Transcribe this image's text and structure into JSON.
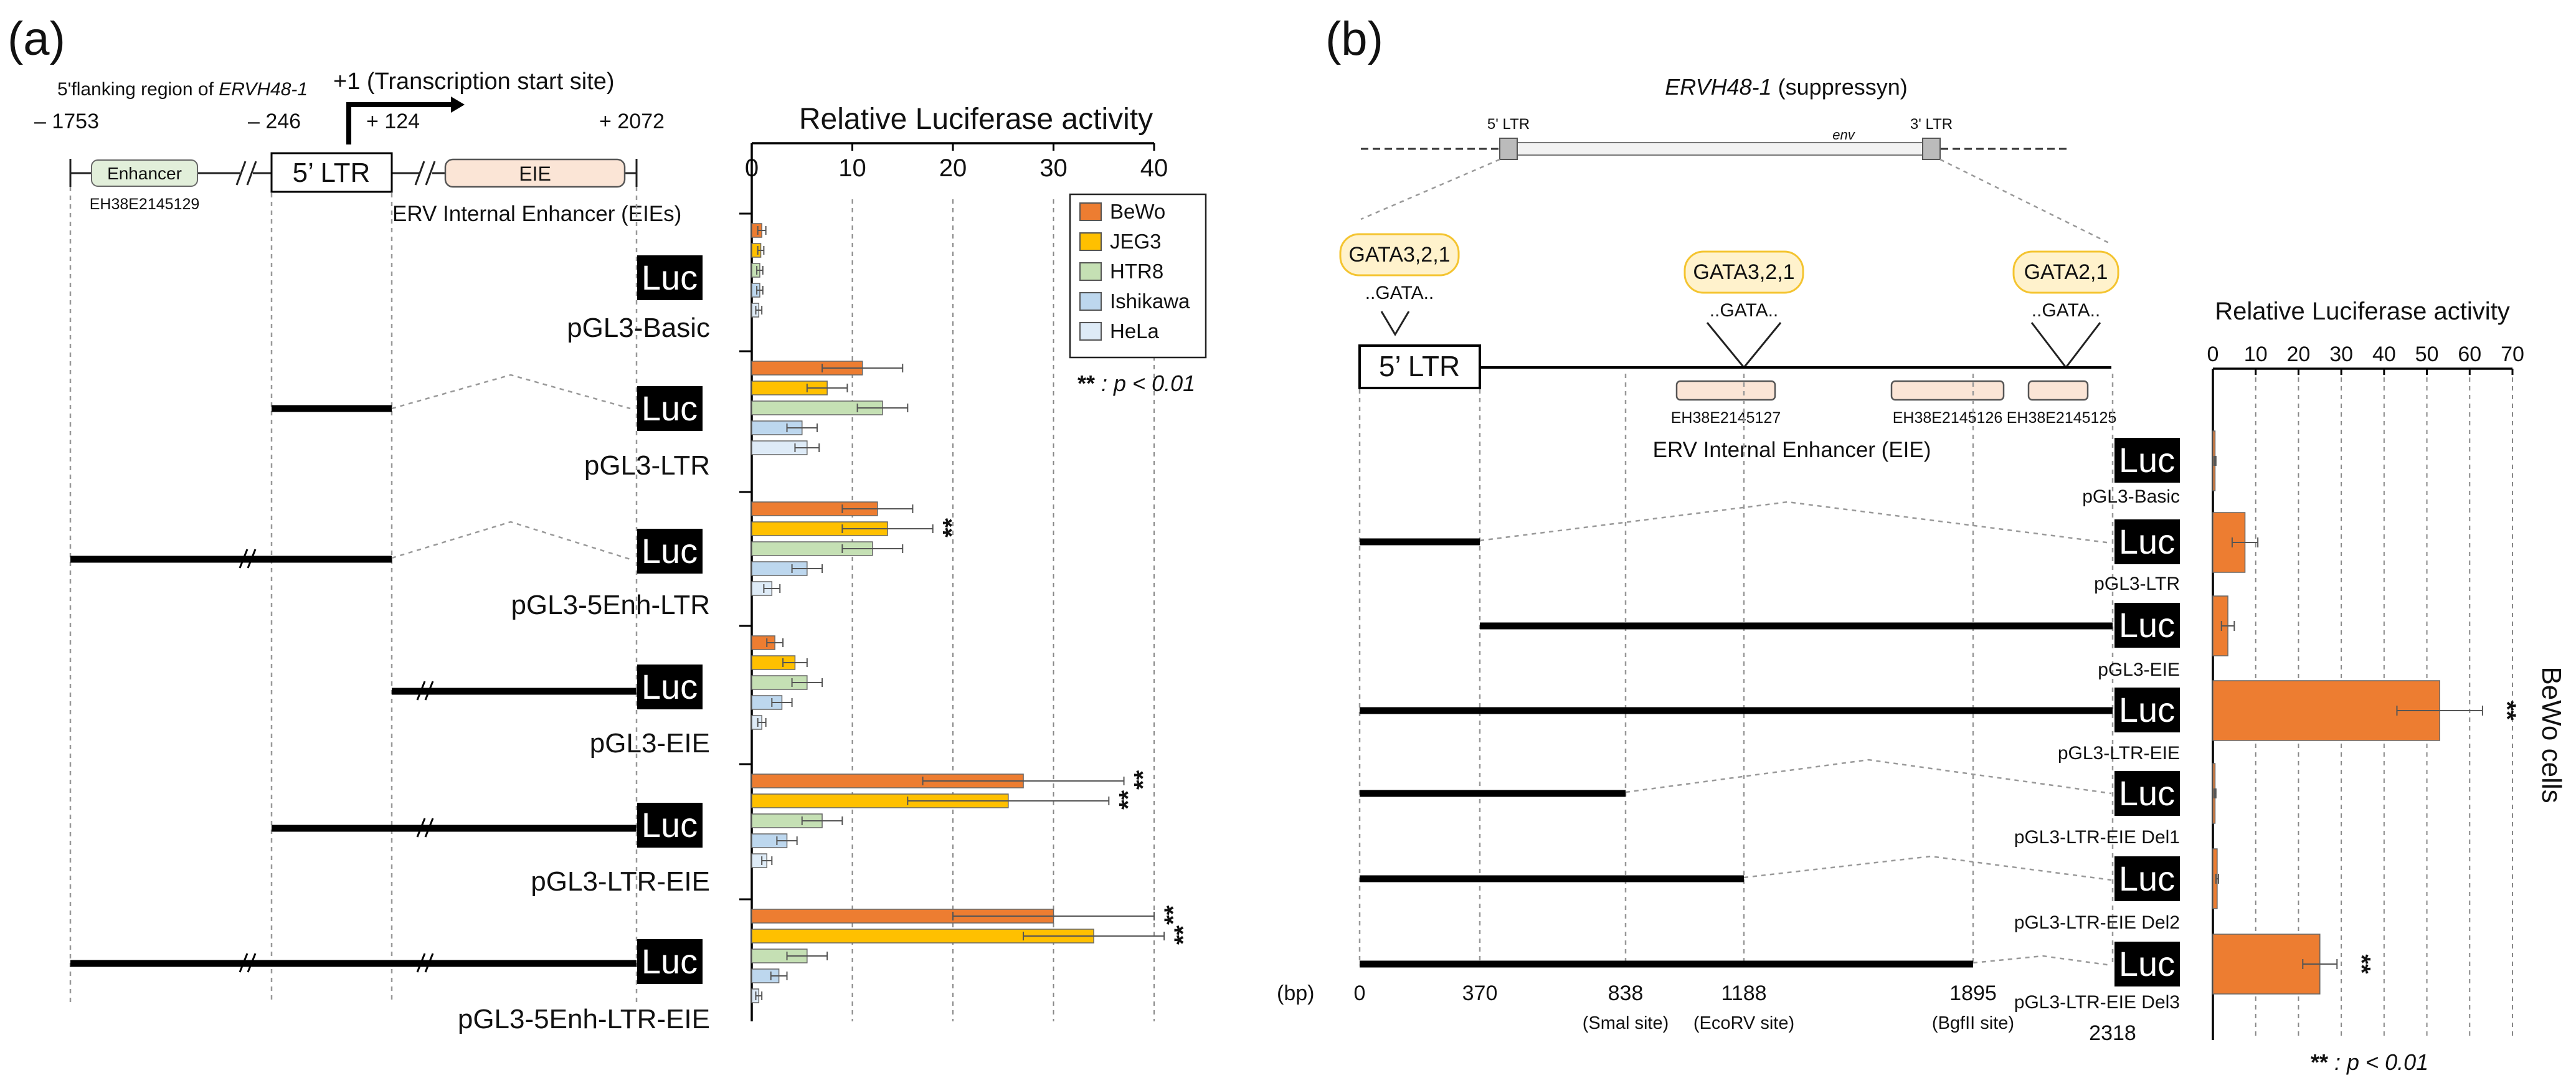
{
  "colors": {
    "BeWo": "#ED7D31",
    "JEG3": "#FFC000",
    "HTR8": "#C5E0B4",
    "Ishikawa": "#BDD7EE",
    "HeLa": "#DEEBF7"
  },
  "panel_a": {
    "label": "(a)",
    "flank_label_prefix": "5'flanking region of ",
    "flank_gene": "ERVH48-1",
    "tss_label": "+1 (Transcription start site)",
    "coords": [
      "– 1753",
      "– 246",
      "+ 124",
      "+ 2072"
    ],
    "enhancer_label": "Enhancer",
    "enhancer_id": "EH38E2145129",
    "ltr_label": "5’ LTR",
    "eie_label": "EIE",
    "eie_full": "ERV Internal Enhancer (EIEs)",
    "luc": "Luc",
    "sig_note": "** : p < 0.01",
    "sig_mark": "**"
  },
  "panel_b": {
    "label": "(b)",
    "gene_name": "ERVH48-1",
    "gene_suffix": " (suppressyn)",
    "ltr5_small": "5' LTR",
    "env_label": "env",
    "ltr3_small": "3' LTR",
    "gata_sites": [
      "GATA3,2,1",
      "GATA3,2,1",
      "GATA2,1"
    ],
    "gata_motif": "..GATA..",
    "ltr_label": "5’ LTR",
    "eie_ids": [
      "EH38E2145127",
      "EH38E2145126",
      "EH38E2145125"
    ],
    "eie_full": "ERV Internal Enhancer (EIE)",
    "bp_label": "(bp)",
    "positions": [
      "0",
      "370",
      "838",
      "1188",
      "1895",
      "2318"
    ],
    "site_notes": [
      "(Smal site)",
      "(EcoRV site)",
      "(BgfII site)"
    ],
    "luc": "Luc",
    "cell_label": "BeWo cells",
    "sig_note": "** : p < 0.01",
    "sig_mark": "**"
  },
  "chart_data": [
    {
      "type": "bar",
      "orientation": "horizontal",
      "title": "Relative Luciferase activity",
      "xlim": [
        0,
        40
      ],
      "xticks": [
        0,
        10,
        20,
        30,
        40
      ],
      "grid": true,
      "legend": "top-right",
      "categories": [
        "pGL3-Basic",
        "pGL3-LTR",
        "pGL3-5Enh-LTR",
        "pGL3-EIE",
        "pGL3-LTR-EIE",
        "pGL3-5Enh-LTR-EIE"
      ],
      "series": [
        {
          "name": "BeWo",
          "values": [
            1.0,
            11.0,
            12.5,
            2.3,
            27.0,
            30.0
          ],
          "errors": [
            0.4,
            4.0,
            3.5,
            0.8,
            10.0,
            10.0
          ]
        },
        {
          "name": "JEG3",
          "values": [
            0.9,
            7.5,
            13.5,
            4.3,
            25.5,
            34.0
          ],
          "errors": [
            0.3,
            2.0,
            4.5,
            1.2,
            10.0,
            7.0
          ]
        },
        {
          "name": "HTR8",
          "values": [
            0.8,
            13.0,
            12.0,
            5.5,
            7.0,
            5.5
          ],
          "errors": [
            0.3,
            2.5,
            3.0,
            1.5,
            2.0,
            2.0
          ]
        },
        {
          "name": "Ishikawa",
          "values": [
            0.8,
            5.0,
            5.5,
            3.0,
            3.5,
            2.7
          ],
          "errors": [
            0.3,
            1.5,
            1.5,
            1.0,
            1.0,
            0.8
          ]
        },
        {
          "name": "HeLa",
          "values": [
            0.7,
            5.5,
            2.0,
            1.0,
            1.5,
            0.7
          ],
          "errors": [
            0.3,
            1.2,
            0.8,
            0.4,
            0.5,
            0.3
          ]
        }
      ],
      "significance": [
        {
          "construct": "pGL3-5Enh-LTR",
          "series": "JEG3",
          "label": "**"
        },
        {
          "construct": "pGL3-LTR-EIE",
          "series": "BeWo",
          "label": "**"
        },
        {
          "construct": "pGL3-LTR-EIE",
          "series": "JEG3",
          "label": "**"
        },
        {
          "construct": "pGL3-5Enh-LTR-EIE",
          "series": "BeWo",
          "label": "**"
        },
        {
          "construct": "pGL3-5Enh-LTR-EIE",
          "series": "JEG3",
          "label": "**"
        }
      ]
    },
    {
      "type": "bar",
      "orientation": "horizontal",
      "title": "Relative Luciferase activity",
      "xlim": [
        0,
        70
      ],
      "xticks": [
        0,
        10,
        20,
        30,
        40,
        50,
        60,
        70
      ],
      "grid": true,
      "categories": [
        "pGL3-Basic",
        "pGL3-LTR",
        "pGL3-EIE",
        "pGL3-LTR-EIE",
        "pGL3-LTR-EIE Del1",
        "pGL3-LTR-EIE Del2",
        "pGL3-LTR-EIE Del3"
      ],
      "series": [
        {
          "name": "BeWo",
          "values": [
            0.5,
            7.5,
            3.5,
            53.0,
            0.5,
            1.0,
            25.0
          ],
          "errors": [
            0.2,
            3.0,
            1.5,
            10.0,
            0.2,
            0.3,
            4.0
          ]
        }
      ],
      "significance": [
        {
          "construct": "pGL3-LTR-EIE",
          "series": "BeWo",
          "label": "**"
        },
        {
          "construct": "pGL3-LTR-EIE Del3",
          "series": "BeWo",
          "label": "**"
        }
      ]
    }
  ]
}
